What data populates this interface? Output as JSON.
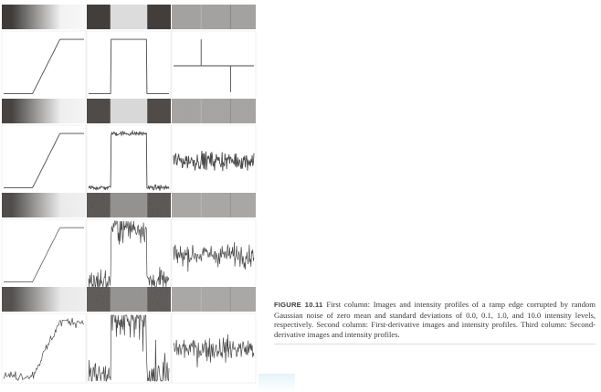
{
  "figure": {
    "label": "FIGURE 10.11",
    "text": "First column: Images and intensity profiles of a ramp edge corrupted by random Gaussian noise of zero mean and standard deviations of 0.0, 0.1, 1.0, and 10.0 intensity levels, respectively. Second column: First-derivative images and intensity profiles. Third column: Second-derivative images and intensity profiles.",
    "noise_std_levels": [
      0.0,
      0.1,
      1.0,
      10.0
    ],
    "columns": [
      "ramp edge image and profile",
      "first derivative",
      "second derivative"
    ]
  }
}
